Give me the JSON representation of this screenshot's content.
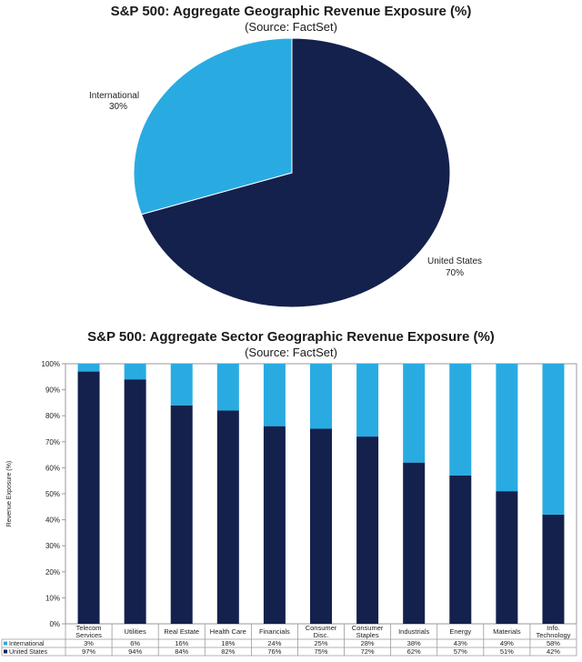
{
  "chart_data": [
    {
      "type": "pie",
      "title": "S&P 500: Aggregate Geographic Revenue Exposure (%)",
      "subtitle": "(Source: FactSet)",
      "slices": [
        {
          "name": "United States",
          "value": 70,
          "label": "70%",
          "color": "#14214d"
        },
        {
          "name": "International",
          "value": 30,
          "label": "30%",
          "color": "#29abe2"
        }
      ]
    },
    {
      "type": "bar",
      "stacked": true,
      "title": "S&P 500: Aggregate Sector Geographic Revenue Exposure (%)",
      "subtitle": "(Source: FactSet)",
      "ylabel": "Revenue Exposure (%)",
      "ylim": [
        0,
        100
      ],
      "yticks": [
        "0%",
        "10%",
        "20%",
        "30%",
        "40%",
        "50%",
        "60%",
        "70%",
        "80%",
        "90%",
        "100%"
      ],
      "categories": [
        "Telecom Services",
        "Utilities",
        "Real Estate",
        "Health Care",
        "Financials",
        "Consumer Disc.",
        "Consumer Staples",
        "Industrials",
        "Energy",
        "Materials",
        "Info. Technology"
      ],
      "category_lines": [
        [
          "Telecom",
          "Services"
        ],
        [
          "Utilities"
        ],
        [
          "Real Estate"
        ],
        [
          "Health Care"
        ],
        [
          "Financials"
        ],
        [
          "Consumer",
          "Disc."
        ],
        [
          "Consumer",
          "Staples"
        ],
        [
          "Industrials"
        ],
        [
          "Energy"
        ],
        [
          "Materials"
        ],
        [
          "Info.",
          "Technology"
        ]
      ],
      "series": [
        {
          "name": "United States",
          "color": "#14214d",
          "values": [
            97,
            94,
            84,
            82,
            76,
            75,
            72,
            62,
            57,
            51,
            42
          ],
          "labels": [
            "97%",
            "94%",
            "84%",
            "82%",
            "76%",
            "75%",
            "72%",
            "62%",
            "57%",
            "51%",
            "42%"
          ]
        },
        {
          "name": "International",
          "color": "#29abe2",
          "values": [
            3,
            6,
            16,
            18,
            24,
            25,
            28,
            38,
            43,
            49,
            58
          ],
          "labels": [
            "3%",
            "6%",
            "16%",
            "18%",
            "24%",
            "25%",
            "28%",
            "38%",
            "43%",
            "49%",
            "58%"
          ]
        }
      ],
      "table_row_order": [
        "International",
        "United States"
      ]
    }
  ]
}
